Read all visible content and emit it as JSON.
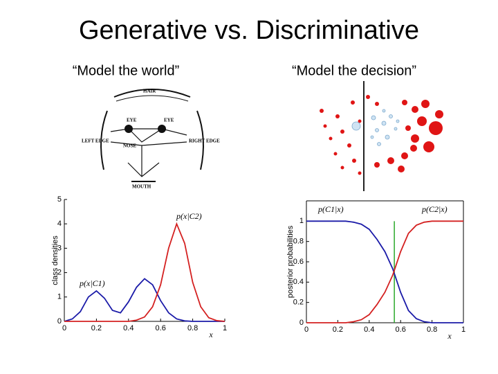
{
  "title": "Generative vs. Discriminative",
  "subtitles": [
    "“Model the world”",
    "“Model the decision”"
  ],
  "face_diagram": {
    "labels": [
      "HAIR",
      "EYE",
      "EYE",
      "LEFT EDGE",
      "NOSE",
      "RIGHT EDGE",
      "MOUTH"
    ]
  },
  "chart_data": [
    {
      "type": "line",
      "x_label": "x",
      "y_label": "class densities",
      "x": [
        0,
        0.05,
        0.1,
        0.15,
        0.2,
        0.25,
        0.3,
        0.35,
        0.4,
        0.45,
        0.5,
        0.55,
        0.6,
        0.65,
        0.7,
        0.75,
        0.8,
        0.85,
        0.9,
        0.95,
        1
      ],
      "series": [
        {
          "name": "p(x|C1)",
          "color": "#1a1aa8",
          "values": [
            0,
            0.1,
            0.4,
            1.0,
            1.25,
            0.95,
            0.45,
            0.35,
            0.8,
            1.4,
            1.75,
            1.5,
            0.85,
            0.35,
            0.1,
            0.02,
            0,
            0,
            0,
            0,
            0
          ]
        },
        {
          "name": "p(x|C2)",
          "color": "#d42020",
          "values": [
            0,
            0,
            0,
            0,
            0,
            0,
            0,
            0,
            0,
            0.05,
            0.18,
            0.6,
            1.5,
            3.0,
            4.0,
            3.2,
            1.6,
            0.6,
            0.15,
            0.03,
            0
          ]
        }
      ],
      "xlim": [
        0,
        1
      ],
      "xticks": [
        0,
        0.2,
        0.4,
        0.6,
        0.8,
        1
      ],
      "ylim": [
        0,
        5
      ],
      "yticks": [
        0,
        1,
        2,
        3,
        4,
        5
      ]
    },
    {
      "type": "line",
      "x_label": "x",
      "y_label": "posterior probabilities",
      "x": [
        0,
        0.05,
        0.1,
        0.15,
        0.2,
        0.25,
        0.3,
        0.35,
        0.4,
        0.45,
        0.5,
        0.55,
        0.6,
        0.65,
        0.7,
        0.75,
        0.8,
        0.85,
        0.9,
        0.95,
        1
      ],
      "series": [
        {
          "name": "p(C1|x)",
          "color": "#1a1aa8",
          "values": [
            1,
            1,
            1,
            1,
            1,
            1,
            0.99,
            0.97,
            0.92,
            0.82,
            0.7,
            0.53,
            0.3,
            0.12,
            0.04,
            0.01,
            0,
            0,
            0,
            0,
            0
          ]
        },
        {
          "name": "p(C2|x)",
          "color": "#d42020",
          "values": [
            0,
            0,
            0,
            0,
            0,
            0,
            0.01,
            0.03,
            0.08,
            0.18,
            0.3,
            0.47,
            0.7,
            0.88,
            0.96,
            0.99,
            1,
            1,
            1,
            1,
            1
          ]
        }
      ],
      "boundary": 0.56,
      "boundary_color": "#2aa82a",
      "xlim": [
        0,
        1
      ],
      "xticks": [
        0,
        0.2,
        0.4,
        0.6,
        0.8,
        1
      ],
      "ylim": [
        0,
        1.2
      ],
      "yticks": [
        0,
        0.2,
        0.4,
        0.6,
        0.8,
        1
      ]
    }
  ]
}
